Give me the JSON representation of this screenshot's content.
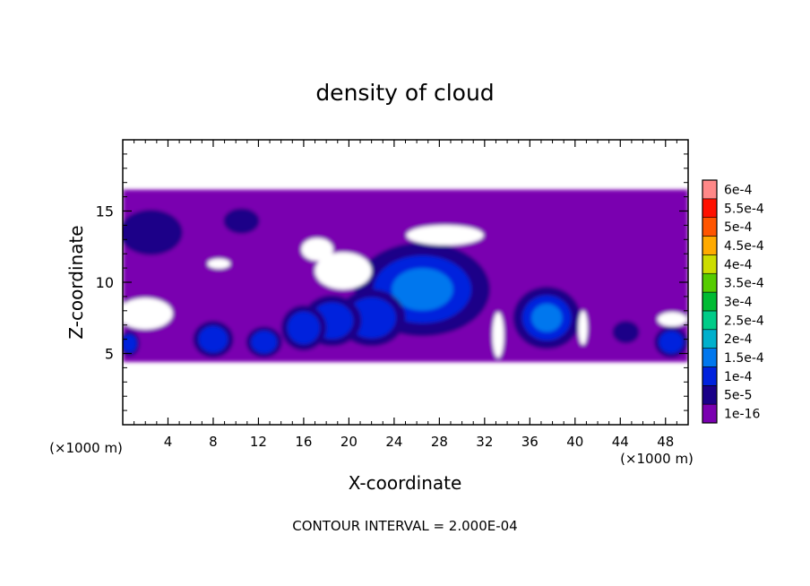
{
  "chart_data": {
    "type": "heatmap",
    "title": "density of cloud",
    "xlabel": "X-coordinate",
    "ylabel": "Z-coordinate",
    "x_unit_label": "(×1000 m)",
    "xlim": [
      0,
      50
    ],
    "ylim": [
      0,
      20
    ],
    "x_ticks": [
      4,
      8,
      12,
      16,
      20,
      24,
      28,
      32,
      36,
      40,
      44,
      48
    ],
    "y_ticks": [
      5,
      10,
      15
    ],
    "footer": "CONTOUR INTERVAL = 2.000E-04",
    "colorbar": {
      "labels": [
        "1e-16",
        "5e-5",
        "1e-4",
        "1.5e-4",
        "2e-4",
        "2.5e-4",
        "3e-4",
        "3.5e-4",
        "4e-4",
        "4.5e-4",
        "5e-4",
        "5.5e-4",
        "6e-4"
      ],
      "colors": [
        "#7a00b0",
        "#1a0088",
        "#0022dd",
        "#0077ee",
        "#00b0cc",
        "#00cc88",
        "#00bb33",
        "#55cc00",
        "#ccdd00",
        "#ffaa00",
        "#ff5500",
        "#ff1100",
        "#ff8888"
      ]
    },
    "cloud_layer": {
      "base_z": 4.4,
      "top_z": 16.5,
      "colors": {
        "outer": "#7a00b0",
        "mid": "#1a0088",
        "inner": "#0022dd",
        "core": "#0077ee"
      },
      "cells": [
        {
          "x": 26.5,
          "z": 9.5,
          "rx": 6,
          "rz": 3.3,
          "level": 3
        },
        {
          "x": 22,
          "z": 7.5,
          "rx": 3,
          "rz": 2,
          "level": 2
        },
        {
          "x": 18.5,
          "z": 7.3,
          "rx": 2.6,
          "rz": 1.8,
          "level": 2
        },
        {
          "x": 16,
          "z": 6.8,
          "rx": 2,
          "rz": 1.6,
          "level": 2
        },
        {
          "x": 37.5,
          "z": 7.5,
          "rx": 3,
          "rz": 2.2,
          "level": 3
        },
        {
          "x": 8,
          "z": 6,
          "rx": 1.8,
          "rz": 1.3,
          "level": 2
        },
        {
          "x": 12.5,
          "z": 5.8,
          "rx": 1.6,
          "rz": 1.1,
          "level": 2
        },
        {
          "x": 2.5,
          "z": 13.5,
          "rx": 2.8,
          "rz": 1.6,
          "level": 1
        },
        {
          "x": 10.5,
          "z": 14.3,
          "rx": 1.6,
          "rz": 0.9,
          "level": 1
        },
        {
          "x": 48.5,
          "z": 5.8,
          "rx": 1.5,
          "rz": 1.1,
          "level": 2
        },
        {
          "x": 44.5,
          "z": 6.5,
          "rx": 1.2,
          "rz": 0.8,
          "level": 1
        },
        {
          "x": 0.6,
          "z": 5.7,
          "rx": 0.9,
          "rz": 0.9,
          "level": 2
        }
      ],
      "gaps": [
        {
          "x": 2,
          "z": 7.8,
          "rx": 2.4,
          "rz": 1.1
        },
        {
          "x": 28.5,
          "z": 13.3,
          "rx": 3.4,
          "rz": 0.7
        },
        {
          "x": 19.5,
          "z": 10.8,
          "rx": 2.5,
          "rz": 1.3
        },
        {
          "x": 17.2,
          "z": 12.3,
          "rx": 1.4,
          "rz": 0.8
        },
        {
          "x": 48.6,
          "z": 7.4,
          "rx": 1.3,
          "rz": 0.5
        },
        {
          "x": 8.5,
          "z": 11.3,
          "rx": 1.0,
          "rz": 0.35
        },
        {
          "x": 33.2,
          "z": 6.3,
          "rx": 0.5,
          "rz": 1.6
        },
        {
          "x": 40.7,
          "z": 6.8,
          "rx": 0.4,
          "rz": 1.2
        }
      ]
    }
  }
}
